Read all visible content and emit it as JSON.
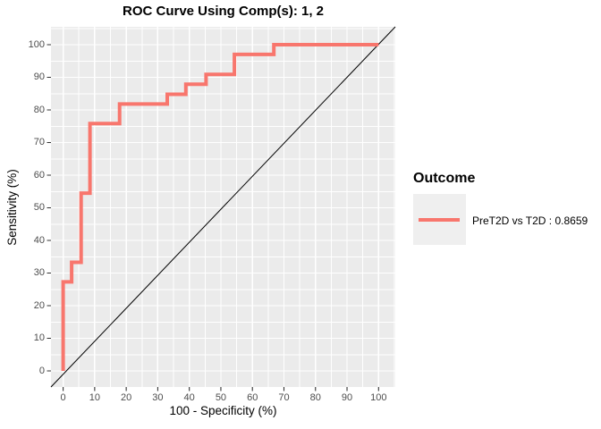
{
  "colors": {
    "panel_bg": "#EBEBEB",
    "grid_major": "#FFFFFF",
    "grid_minor": "#FFFFFF",
    "curve": "#F8766D",
    "reference_line": "#000000",
    "tick_mark": "#333333",
    "tick_label": "#4D4D4D",
    "legend_key_bg": "#EFEFEF",
    "text": "#000000"
  },
  "legend": {
    "title": "Outcome",
    "entries": [
      {
        "label": "PreT2D vs T2D : 0.8659",
        "color": "#F8766D"
      }
    ]
  },
  "chart_data": {
    "type": "line",
    "subtype": "roc-step-curve",
    "title": "ROC Curve Using Comp(s): 1, 2",
    "xlabel": "100 - Specificity (%)",
    "ylabel": "Sensitivity (%)",
    "xlim": [
      0,
      100
    ],
    "ylim": [
      0,
      100
    ],
    "x_ticks": [
      0,
      10,
      20,
      30,
      40,
      50,
      60,
      70,
      80,
      90,
      100
    ],
    "y_ticks": [
      0,
      10,
      20,
      30,
      40,
      50,
      60,
      70,
      80,
      90,
      100
    ],
    "grid": true,
    "legend_position": "right",
    "legend_title": "Outcome",
    "series": [
      {
        "name": "PreT2D vs T2D : 0.8659",
        "auc": 0.8659,
        "color": "#F8766D",
        "points": [
          [
            0,
            0
          ],
          [
            0,
            27.3
          ],
          [
            2.7,
            27.3
          ],
          [
            2.7,
            33.3
          ],
          [
            5.7,
            33.3
          ],
          [
            5.7,
            54.5
          ],
          [
            8.5,
            54.5
          ],
          [
            8.5,
            75.8
          ],
          [
            17.9,
            75.8
          ],
          [
            17.9,
            81.8
          ],
          [
            33,
            81.8
          ],
          [
            33,
            84.8
          ],
          [
            38.9,
            84.8
          ],
          [
            38.9,
            87.9
          ],
          [
            45.3,
            87.9
          ],
          [
            45.3,
            90.9
          ],
          [
            54.3,
            90.9
          ],
          [
            54.3,
            97
          ],
          [
            66.8,
            97
          ],
          [
            66.8,
            100
          ],
          [
            100,
            100
          ]
        ]
      }
    ],
    "reference_line": {
      "type": "diagonal",
      "from": [
        0,
        0
      ],
      "to": [
        100,
        100
      ]
    }
  }
}
